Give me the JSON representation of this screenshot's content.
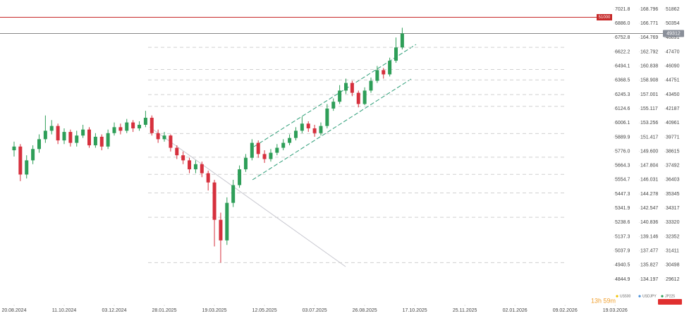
{
  "chart_data": {
    "type": "candlestick",
    "log_scale": true,
    "xlim": [
      -2.25,
      97.1
    ],
    "xticks": [
      {
        "value": 0,
        "label": "20.08.2024"
      },
      {
        "value": 8,
        "label": "11.10.2024"
      },
      {
        "value": 16,
        "label": "03.12.2024"
      },
      {
        "value": 24,
        "label": "28.01.2025"
      },
      {
        "value": 32,
        "label": "19.03.2025"
      },
      {
        "value": 40,
        "label": "12.05.2025"
      },
      {
        "value": 48,
        "label": "03.07.2025"
      },
      {
        "value": 56,
        "label": "26.08.2025"
      },
      {
        "value": 64,
        "label": "17.10.2025"
      },
      {
        "value": 72,
        "label": "25.11.2025"
      },
      {
        "value": 80,
        "label": "02.01.2026"
      },
      {
        "value": 88,
        "label": "09.02.2026"
      },
      {
        "value": 96,
        "label": "19.03.2026"
      }
    ],
    "axes": [
      {
        "name": "US500",
        "color": "#f2c200",
        "ylim": [
          7021.8,
          4844.9
        ],
        "yticks": [
          7021.8,
          {
            "value": 6886,
            "label": "6886.0"
          },
          6752.8,
          6622.2,
          6494.1,
          6368.5,
          6245.3,
          6124.6,
          6006.1,
          5889.9,
          {
            "value": 5776,
            "label": "5776.0"
          },
          5664.3,
          5554.7,
          5447.3,
          5341.9,
          5238.6,
          5137.3,
          5037.9,
          4940.5,
          4844.9
        ]
      },
      {
        "name": "USDJPY",
        "color": "#4a90d9",
        "ylim": [
          168.796,
          134.197
        ],
        "yticks": [
          168.796,
          166.771,
          164.769,
          162.792,
          160.838,
          158.908,
          157.001,
          155.117,
          153.256,
          151.417,
          {
            "value": 149.6,
            "label": "149.600"
          },
          147.804,
          146.031,
          144.278,
          142.547,
          140.836,
          139.146,
          137.477,
          135.827,
          134.197
        ]
      },
      {
        "name": "JP225",
        "color": "#2e9e58",
        "ylim": [
          51862,
          29612
        ],
        "yticks": [
          51862,
          50354,
          48891,
          47470,
          46090,
          44751,
          43450,
          42187,
          40961,
          39771,
          38615,
          37492,
          36403,
          35345,
          34317,
          33320,
          32352,
          31411,
          30498,
          29612
        ]
      }
    ],
    "series": [
      {
        "name": "JP225",
        "axis": 2,
        "up_color": "#2e9e58",
        "down_color": "#d6303d",
        "open": [
          38700,
          39000,
          36800,
          37900,
          38800,
          39600,
          40300,
          40700,
          39500,
          40200,
          39300,
          39900,
          40400,
          39100,
          39800,
          39000,
          40100,
          40600,
          40300,
          41000,
          40500,
          40800,
          41400,
          40100,
          39600,
          39900,
          38900,
          38300,
          37900,
          37200,
          37600,
          36900,
          36200,
          33500,
          32100,
          34700,
          36000,
          37200,
          38100,
          39300,
          38400,
          38000,
          38500,
          38900,
          39300,
          39700,
          40300,
          40900,
          40500,
          40100,
          40700,
          42200,
          42800,
          43800,
          44500,
          43600,
          42600,
          43800,
          44700,
          45700,
          45300,
          46600,
          47900
        ],
        "high": [
          39400,
          39200,
          38300,
          39100,
          40000,
          41600,
          41200,
          40900,
          40500,
          40400,
          40300,
          40800,
          40600,
          40100,
          40000,
          40400,
          41000,
          40900,
          41300,
          41200,
          41100,
          42000,
          41600,
          40400,
          40200,
          40000,
          39100,
          38600,
          38100,
          37900,
          37800,
          37100,
          36400,
          34000,
          35100,
          36400,
          37500,
          38400,
          39600,
          39500,
          38700,
          38800,
          39200,
          39600,
          40000,
          40600,
          41500,
          41100,
          40800,
          41000,
          42600,
          43100,
          44300,
          44900,
          44700,
          43800,
          44100,
          45000,
          46100,
          45900,
          46900,
          48900,
          49900
        ],
        "low": [
          38200,
          36300,
          36500,
          37600,
          38500,
          39300,
          40000,
          39200,
          39200,
          39000,
          39000,
          39700,
          38900,
          38900,
          38700,
          38800,
          39900,
          40000,
          40100,
          40200,
          40300,
          40600,
          39900,
          39300,
          39400,
          38600,
          38000,
          37600,
          36900,
          36900,
          36600,
          35600,
          31700,
          30650,
          31800,
          34400,
          35800,
          37000,
          37900,
          38100,
          37700,
          37800,
          38300,
          38700,
          39100,
          39500,
          40100,
          40200,
          39800,
          39900,
          40500,
          42000,
          42600,
          43500,
          43300,
          42300,
          42500,
          43600,
          44500,
          44900,
          45100,
          46400,
          47700
        ],
        "close": [
          39000,
          36800,
          37900,
          38800,
          39600,
          40300,
          40700,
          39500,
          40200,
          39300,
          39900,
          40400,
          39100,
          39800,
          39000,
          40100,
          40600,
          40300,
          41000,
          40500,
          40800,
          41400,
          40100,
          39600,
          39900,
          38900,
          38300,
          37900,
          37200,
          37600,
          36900,
          36200,
          33500,
          32100,
          34700,
          36000,
          37200,
          38100,
          39300,
          38400,
          38000,
          38500,
          38900,
          39300,
          39700,
          40300,
          40900,
          40500,
          40100,
          40700,
          42200,
          42800,
          43800,
          44500,
          43600,
          42600,
          43800,
          44700,
          45700,
          45300,
          46600,
          47900,
          49312
        ]
      }
    ],
    "fib_levels": [
      51000,
      47911,
      45762,
      44774,
      43438,
      42392,
      40068,
      38150,
      36814,
      35420,
      33677,
      30656
    ],
    "alert_level": 51000,
    "alert_color": "#c62828",
    "last_price": 49312,
    "timer": "13h 59m"
  }
}
